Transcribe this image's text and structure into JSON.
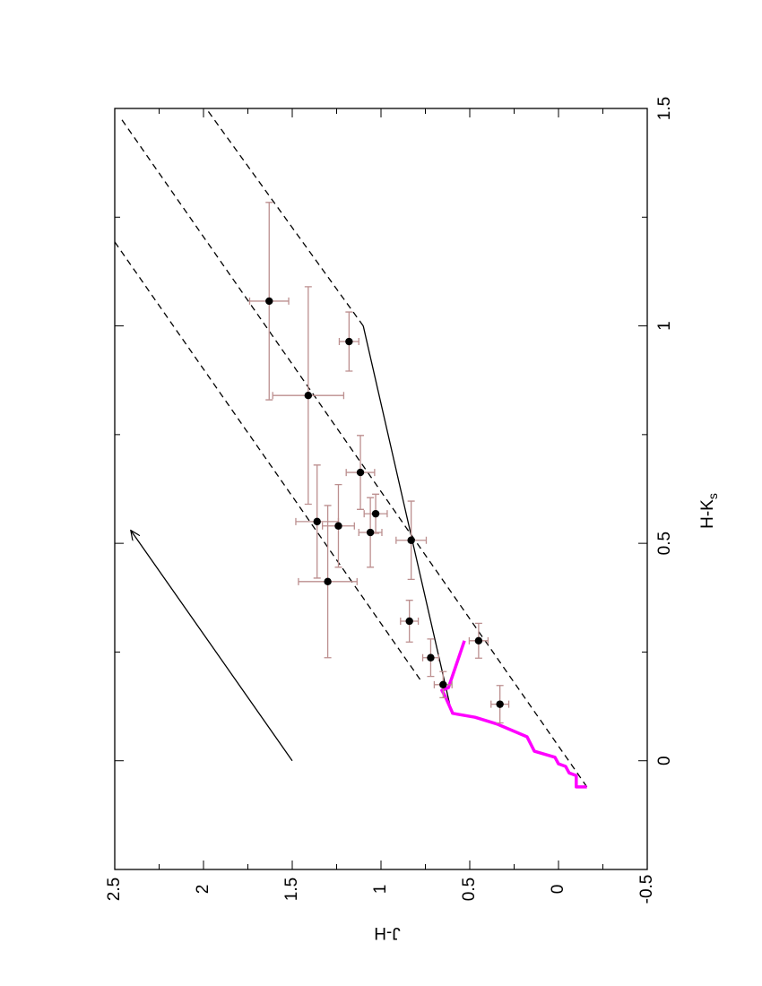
{
  "chart_data": {
    "type": "scatter",
    "x_label": "H-K",
    "x_label_subscript": "s",
    "y_label": "J-H",
    "xlim": [
      -0.25,
      1.5
    ],
    "xticks": [
      0,
      0.5,
      1,
      1.5
    ],
    "xminorticks": [
      0.25,
      0.75,
      1.25
    ],
    "ylim": [
      -0.5,
      2.5
    ],
    "yticks": [
      -0.5,
      0,
      0.5,
      1,
      1.5,
      2,
      2.5
    ],
    "yminorticks": [
      -0.25,
      0.25,
      0.75,
      1.25,
      1.75,
      2.25
    ],
    "points": {
      "color": "#000000",
      "error_color": "#bc8f8f",
      "x": [
        1.057,
        0.964,
        0.84,
        0.663,
        0.55,
        0.54,
        0.568,
        0.525,
        0.507,
        0.412,
        0.321,
        0.276,
        0.237,
        0.175,
        0.13
      ],
      "x_err": [
        0.227,
        0.068,
        0.25,
        0.085,
        0.13,
        0.095,
        0.045,
        0.08,
        0.09,
        0.175,
        0.048,
        0.04,
        0.043,
        0.03,
        0.043
      ],
      "y": [
        1.63,
        1.18,
        1.41,
        1.116,
        1.36,
        1.24,
        1.03,
        1.06,
        0.83,
        1.3,
        0.84,
        0.45,
        0.72,
        0.65,
        0.33
      ],
      "y_err": [
        0.11,
        0.055,
        0.2,
        0.08,
        0.12,
        0.09,
        0.065,
        0.065,
        0.085,
        0.165,
        0.05,
        0.053,
        0.045,
        0.05,
        0.05
      ]
    },
    "dwarf_locus": {
      "color": "#ff00ff",
      "x": [
        -0.06,
        -0.06,
        -0.034,
        -0.028,
        -0.013,
        -0.007,
        0.008,
        0.022,
        0.055,
        0.084,
        0.1,
        0.109,
        0.146,
        0.162,
        0.168,
        0.276
      ],
      "y": [
        -0.16,
        -0.1,
        -0.1,
        -0.06,
        -0.04,
        0,
        0.02,
        0.136,
        0.177,
        0.343,
        0.47,
        0.596,
        0.636,
        0.657,
        0.62,
        0.53
      ]
    },
    "ctts_locus": {
      "color": "#000000",
      "x": [
        0.107,
        1.0
      ],
      "y": [
        0.6,
        1.1
      ]
    },
    "reddening_lines": [
      {
        "x": [
          0.187,
          1.193
        ],
        "y": [
          0.78,
          2.5
        ]
      },
      {
        "x": [
          -0.06,
          1.48
        ],
        "y": [
          -0.16,
          2.47
        ]
      },
      {
        "x": [
          1.0,
          1.5
        ],
        "y": [
          1.1,
          1.985
        ]
      }
    ],
    "reddening_vector": {
      "x": [
        0,
        0.53
      ],
      "y": [
        1.5,
        2.41
      ]
    }
  }
}
